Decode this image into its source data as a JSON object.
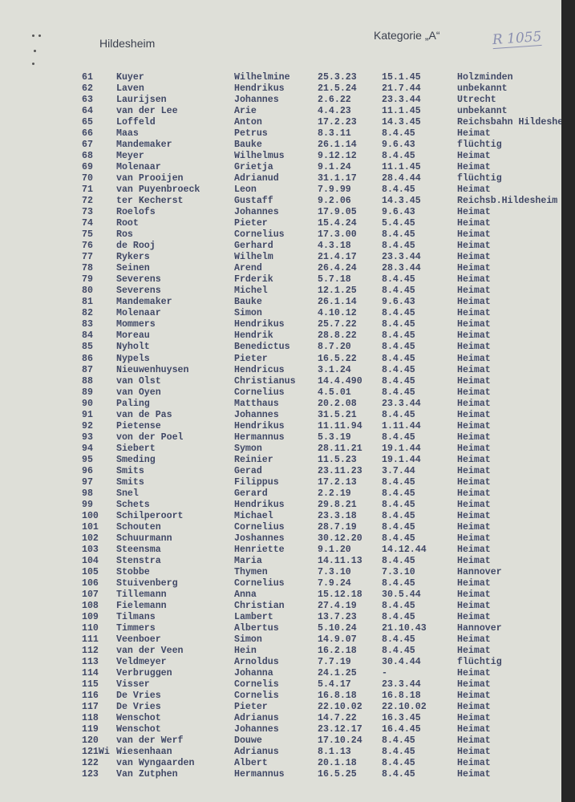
{
  "header": {
    "city": "Hildesheim",
    "category": "Kategorie „A“",
    "stamp": "R 1055"
  },
  "rows": [
    [
      "61",
      "Kuyer",
      "Wilhelmine",
      "25.3.23",
      "15.1.45",
      "Holzminden"
    ],
    [
      "62",
      "Laven",
      "Hendrikus",
      "21.5.24",
      "21.7.44",
      "unbekannt"
    ],
    [
      "63",
      "Laurijsen",
      "Johannes",
      "2.6.22",
      "23.3.44",
      "Utrecht"
    ],
    [
      "64",
      "van der Lee",
      "Arie",
      "4.4.23",
      "11.1.45",
      "unbekannt"
    ],
    [
      "65",
      "Loffeld",
      "Anton",
      "17.2.23",
      "14.3.45",
      "Reichsbahn Hildesheim"
    ],
    [
      "66",
      "Maas",
      "Petrus",
      "8.3.11",
      "8.4.45",
      "Heimat"
    ],
    [
      "67",
      "Mandemaker",
      "Bauke",
      "26.1.14",
      "9.6.43",
      "flüchtig"
    ],
    [
      "68",
      "Meyer",
      "Wilhelmus",
      "9.12.12",
      "8.4.45",
      "Heimat"
    ],
    [
      "69",
      "Molenaar",
      "Grietja",
      "9.1.24",
      "11.1.45",
      "Heimat"
    ],
    [
      "70",
      "van Prooijen",
      "Adrianud",
      "31.1.17",
      "28.4.44",
      "flüchtig"
    ],
    [
      "71",
      "van Puyenbroeck",
      "Leon",
      "7.9.99",
      "8.4.45",
      "Heimat"
    ],
    [
      "72",
      "ter Kecherst",
      "Gustaff",
      "9.2.06",
      "14.3.45",
      "Reichsb.Hildesheim"
    ],
    [
      "73",
      "Roelofs",
      "Johannes",
      "17.9.05",
      "9.6.43",
      "Heimat"
    ],
    [
      "74",
      "Root",
      "Pieter",
      "15.4.24",
      "5.4.45",
      "Heimat"
    ],
    [
      "75",
      "Ros",
      "Cornelius",
      "17.3.00",
      "8.4.45",
      "Heimat"
    ],
    [
      "76",
      "de Rooj",
      "Gerhard",
      "4.3.18",
      "8.4.45",
      "Heimat"
    ],
    [
      "77",
      "Rykers",
      "Wilhelm",
      "21.4.17",
      "23.3.44",
      "Heimat"
    ],
    [
      "78",
      "Seinen",
      "Arend",
      "26.4.24",
      "28.3.44",
      "Heimat"
    ],
    [
      "79",
      "Severens",
      "Frderik",
      "5.7.18",
      "8.4.45",
      "Heimat"
    ],
    [
      "80",
      "Severens",
      "Michel",
      "12.1.25",
      "8.4.45",
      "Heimat"
    ],
    [
      "81",
      "Mandemaker",
      "Bauke",
      "26.1.14",
      "9.6.43",
      "Heimat"
    ],
    [
      "82",
      "Molenaar",
      "Simon",
      "4.10.12",
      "8.4.45",
      "Heimat"
    ],
    [
      "83",
      "Mommers",
      "Hendrikus",
      "25.7.22",
      "8.4.45",
      "Heimat"
    ],
    [
      "84",
      "Moreau",
      "Hendrik",
      "28.8.22",
      "8.4.45",
      "Heimat"
    ],
    [
      "85",
      "Nyholt",
      "Benedictus",
      "8.7.20",
      "8.4.45",
      "Heimat"
    ],
    [
      "86",
      "Nypels",
      "Pieter",
      "16.5.22",
      "8.4.45",
      "Heimat"
    ],
    [
      "87",
      "Nieuwenhuysen",
      "Hendricus",
      "3.1.24",
      "8.4.45",
      "Heimat"
    ],
    [
      "88",
      "van Olst",
      "Christianus",
      "14.4.490",
      "8.4.45",
      "Heimat"
    ],
    [
      "89",
      "van Oyen",
      "Cornelius",
      "4.5.01",
      "8.4.45",
      "Heimat"
    ],
    [
      "90",
      "Paling",
      "Matthaus",
      "20.2.08",
      "23.3.44",
      "Heimat"
    ],
    [
      "91",
      "van de Pas",
      "Johannes",
      "31.5.21",
      "8.4.45",
      "Heimat"
    ],
    [
      "92",
      "Pietense",
      "Hendrikus",
      "11.11.94",
      "1.11.44",
      "Heimat"
    ],
    [
      "93",
      "von der Poel",
      "Hermannus",
      "5.3.19",
      "8.4.45",
      "Heimat"
    ],
    [
      "94",
      "Siebert",
      "Symon",
      "28.11.21",
      "19.1.44",
      "Heimat"
    ],
    [
      "95",
      "Smeding",
      "Reinier",
      "11.5.23",
      "19.1.44",
      "Heimat"
    ],
    [
      "96",
      "Smits",
      "Gerad",
      "23.11.23",
      "3.7.44",
      "Heimat"
    ],
    [
      "97",
      "Smits",
      "Filippus",
      "17.2.13",
      "8.4.45",
      "Heimat"
    ],
    [
      "98",
      "Snel",
      "Gerard",
      "2.2.19",
      "8.4.45",
      "Heimat"
    ],
    [
      "99",
      "Schets",
      "Hendrikus",
      "29.8.21",
      "8.4.45",
      "Heimat"
    ],
    [
      "100",
      "Schilperoort",
      "Michael",
      "23.3.18",
      "8.4.45",
      "Heimat"
    ],
    [
      "101",
      "Schouten",
      "Cornelius",
      "28.7.19",
      "8.4.45",
      "Heimat"
    ],
    [
      "102",
      "Schuurmann",
      "Joshannes",
      "30.12.20",
      "8.4.45",
      "Heimat"
    ],
    [
      "103",
      "Steensma",
      "Henriette",
      "9.1.20",
      "14.12.44",
      "Heimat"
    ],
    [
      "104",
      "Stenstra",
      "Maria",
      "14.11.13",
      "8.4.45",
      "Heimat"
    ],
    [
      "105",
      "Stobbe",
      "Thymen",
      "7.3.10",
      "7.3.10",
      "Hannover"
    ],
    [
      "106",
      "Stuivenberg",
      "Cornelius",
      "7.9.24",
      "8.4.45",
      "Heimat"
    ],
    [
      "107",
      "Tillemann",
      "Anna",
      "15.12.18",
      "30.5.44",
      "Heimat"
    ],
    [
      "108",
      "Fielemann",
      "Christian",
      "27.4.19",
      "8.4.45",
      "Heimat"
    ],
    [
      "109",
      "Tilmans",
      "Lambert",
      "13.7.23",
      "8.4.45",
      "Heimat"
    ],
    [
      "110",
      "Timmers",
      "Albertus",
      "5.10.24",
      "21.10.43",
      "Hannover"
    ],
    [
      "111",
      "Veenboer",
      "Simon",
      "14.9.07",
      "8.4.45",
      "Heimat"
    ],
    [
      "112",
      "van der Veen",
      "Hein",
      "16.2.18",
      "8.4.45",
      "Heimat"
    ],
    [
      "113",
      "Veldmeyer",
      "Arnoldus",
      "7.7.19",
      "30.4.44",
      "flüchtig"
    ],
    [
      "114",
      "Verbruggen",
      "Johanna",
      "24.1.25",
      "-",
      "Heimat"
    ],
    [
      "115",
      "Visser",
      "Cornelis",
      "5.4.17",
      "23.3.44",
      "Heimat"
    ],
    [
      "116",
      "De Vries",
      "Cornelis",
      "16.8.18",
      "16.8.18",
      "Heimat"
    ],
    [
      "117",
      "De Vries",
      "Pieter",
      "22.10.02",
      "22.10.02",
      "Heimat"
    ],
    [
      "118",
      "Wenschot",
      "Adrianus",
      "14.7.22",
      "16.3.45",
      "Heimat"
    ],
    [
      "119",
      "Wenschot",
      "Johannes",
      "23.12.17",
      "16.4.45",
      "Heimat"
    ],
    [
      "120",
      "van der Werf",
      "Douwe",
      "17.10.24",
      "8.4.45",
      "Heimat"
    ],
    [
      "121Wi",
      "Wiesenhaan",
      "Adrianus",
      "8.1.13",
      "8.4.45",
      "Heimat"
    ],
    [
      "122",
      "van Wyngaarden",
      "Albert",
      "20.1.18",
      "8.4.45",
      "Heimat"
    ],
    [
      "123",
      "Van Zutphen",
      "Hermannus",
      "16.5.25",
      "8.4.45",
      "Heimat"
    ]
  ]
}
